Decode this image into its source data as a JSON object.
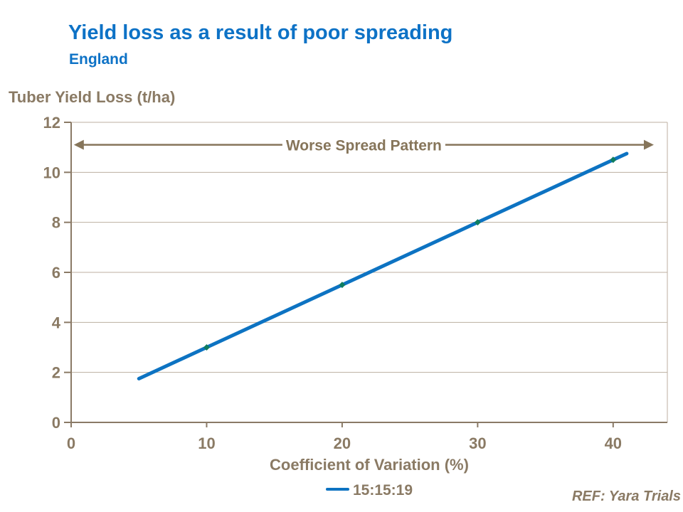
{
  "header": {
    "title": "Yield loss as a result of poor spreading",
    "subtitle": "England"
  },
  "footer": {
    "ref": "REF: Yara Trials"
  },
  "colors": {
    "title_blue": "#0d72c6",
    "line_blue": "#0d73c2",
    "text_brown": "#8a7a64",
    "axis_brown": "#8a7a66",
    "grid": "#bcafa0",
    "annotation_brown": "#86755a",
    "marker_green": "#0f7d60",
    "background": "#ffffff"
  },
  "chart_data": {
    "type": "line",
    "title": "Yield loss as a result of poor spreading",
    "subtitle": "England",
    "xlabel": "Coefficient of Variation (%)",
    "ylabel": "Tuber Yield Loss (t/ha)",
    "xlim": [
      0,
      44
    ],
    "ylim": [
      0,
      12
    ],
    "x_ticks": [
      0,
      10,
      20,
      30,
      40
    ],
    "y_ticks": [
      0,
      2,
      4,
      6,
      8,
      10,
      12
    ],
    "grid": "horizontal",
    "legend_position": "bottom-center",
    "series": [
      {
        "name": "15:15:19",
        "color": "#0d73c2",
        "marker": "diamond",
        "marker_color": "#0f7d60",
        "x": [
          5,
          10,
          20,
          30,
          40,
          41
        ],
        "y": [
          1.75,
          3.0,
          5.5,
          8.0,
          10.5,
          10.75
        ],
        "marker_points": {
          "x": [
            10,
            20,
            30,
            40
          ],
          "y": [
            3.0,
            5.5,
            8.0,
            10.5
          ]
        }
      }
    ],
    "annotation": {
      "text": "Worse Spread Pattern",
      "style": "double-headed-arrow",
      "y_value": 11.1,
      "x_start": 0.2,
      "x_end": 43.0
    }
  }
}
